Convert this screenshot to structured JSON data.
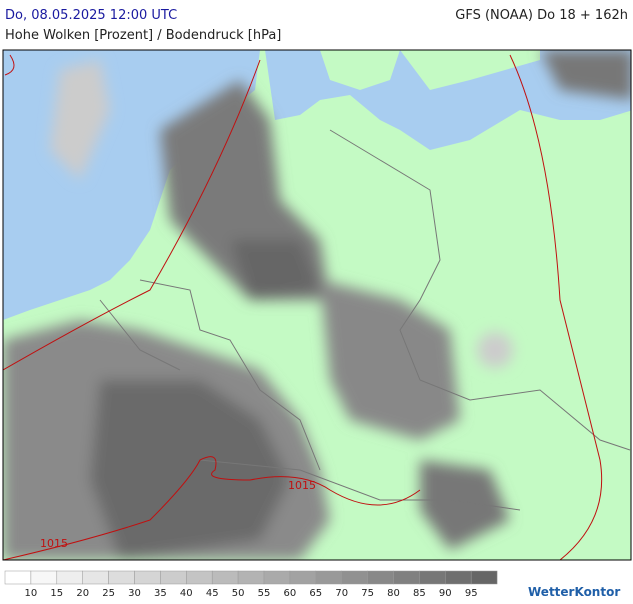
{
  "header": {
    "datetime": "Do, 08.05.2025 12:00 UTC",
    "model": "GFS (NOAA) Do 18 + 162h",
    "title": "Hohe Wolken [Prozent] / Bodendruck [hPa]"
  },
  "map": {
    "isobar_labels": [
      "1015",
      "1015"
    ]
  },
  "legend": {
    "labels": [
      10,
      15,
      20,
      25,
      30,
      35,
      40,
      45,
      50,
      55,
      60,
      65,
      70,
      75,
      80,
      85,
      90,
      95
    ]
  },
  "logo": "WetterKontor"
}
